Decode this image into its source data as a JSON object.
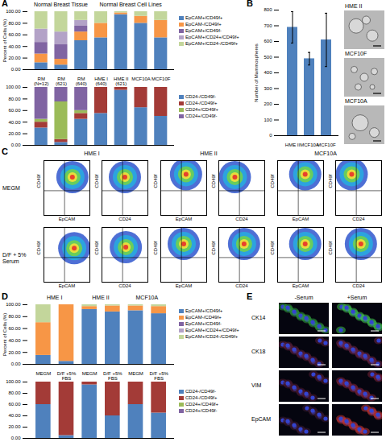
{
  "panel_labels": [
    "A",
    "B",
    "C",
    "D",
    "E"
  ],
  "chart_data": [
    {
      "type": "bar",
      "stacked": true,
      "categories": [
        "RM (N=12)",
        "RM (621)",
        "RM (640)",
        "HME I (640)",
        "HME II (621)",
        "MCF10A",
        "MCF10F"
      ],
      "groups": [
        "Normal Breast Tissue",
        "Normal Breast Tissue",
        "Normal Breast Tissue",
        "Normal Breast Cell Lines",
        "Normal Breast Cell Lines",
        "Normal Breast Cell Lines",
        "Normal Breast Cell Lines"
      ],
      "ylabel": "Percent of Cells (%)",
      "ylim": [
        0,
        100
      ],
      "yticks": [
        {
          "value": 0,
          "label": "0.00"
        },
        {
          "value": 20,
          "label": "20.00"
        },
        {
          "value": 40,
          "label": "40.00"
        },
        {
          "value": 60,
          "label": "60.00"
        },
        {
          "value": 80,
          "label": "80.00"
        },
        {
          "value": 100,
          "label": "100.00"
        }
      ],
      "series": [
        {
          "name": "EpCAM+/CD49f+",
          "color": "#4f81bd",
          "values": [
            12,
            8,
            50,
            55,
            95,
            80,
            55
          ]
        },
        {
          "name": "EpCAM-/CD49f+",
          "color": "#f79646",
          "values": [
            15,
            10,
            15,
            25,
            3,
            12,
            30
          ]
        },
        {
          "name": "EpCAM+/CD49f-",
          "color": "#8064a2",
          "values": [
            20,
            25,
            10,
            0,
            0,
            0,
            0
          ]
        },
        {
          "name": "EpCAM+/CD24+/CD49f+",
          "color": "#b3a2c7",
          "values": [
            23,
            22,
            10,
            0,
            0,
            0,
            0
          ]
        },
        {
          "name": "EpCAM+/CD24-/CD49f+",
          "color": "#c3d69b",
          "values": [
            30,
            35,
            15,
            20,
            2,
            8,
            15
          ]
        }
      ]
    },
    {
      "type": "bar",
      "stacked": true,
      "categories": [
        null,
        null,
        null,
        null,
        null,
        null,
        null
      ],
      "ylim": [
        0,
        100
      ],
      "yticks": [
        {
          "value": 0,
          "label": "0.00"
        },
        {
          "value": 20,
          "label": "20.00"
        },
        {
          "value": 40,
          "label": "40.00"
        },
        {
          "value": 60,
          "label": "60.00"
        },
        {
          "value": 80,
          "label": "80.00"
        },
        {
          "value": 100,
          "label": "100.00"
        }
      ],
      "series": [
        {
          "name": "CD24-/CD49f-",
          "color": "#4f81bd",
          "values": [
            30,
            5,
            45,
            55,
            95,
            65,
            50
          ]
        },
        {
          "name": "CD24-/CD49f+",
          "color": "#a33b37",
          "values": [
            10,
            5,
            10,
            45,
            5,
            35,
            50
          ]
        },
        {
          "name": "CD24+/CD49f+",
          "color": "#9bbb59",
          "values": [
            5,
            65,
            5,
            0,
            0,
            0,
            0
          ]
        },
        {
          "name": "CD24+/CD49f-",
          "color": "#8064a2",
          "values": [
            55,
            25,
            40,
            0,
            0,
            0,
            0
          ]
        }
      ]
    },
    {
      "type": "bar",
      "categories": [
        "HME II",
        "MCF10A",
        "MCF10F"
      ],
      "values": [
        690,
        490,
        610
      ],
      "errors": [
        100,
        40,
        170
      ],
      "color": "#4f81bd",
      "ylabel": "Number of Mammospheres",
      "ylim": [
        0,
        800
      ],
      "yticks": [
        0,
        100,
        200,
        300,
        400,
        500,
        600,
        700,
        800
      ]
    },
    {
      "type": "bar",
      "stacked": true,
      "categories": [
        "MEGM",
        "D/F +5% FBS",
        "MEGM",
        "D/F +5% FBS",
        "MEGM",
        "D/F +5% FBS"
      ],
      "groups": [
        "HME I",
        "HME I",
        "HME II",
        "HME II",
        "MCF10A",
        "MCF10A"
      ],
      "ylabel": "Percent of Cells (%)",
      "ylim": [
        0,
        100
      ],
      "yticks": [
        {
          "value": 0,
          "label": "0.00"
        },
        {
          "value": 20,
          "label": "20.00"
        },
        {
          "value": 40,
          "label": "40.00"
        },
        {
          "value": 60,
          "label": "60.00"
        },
        {
          "value": 80,
          "label": "80.00"
        },
        {
          "value": 100,
          "label": "100.00"
        }
      ],
      "series": [
        {
          "name": "EpCAM+/CD49f+",
          "color": "#4f81bd",
          "values": [
            15,
            5,
            92,
            88,
            90,
            85
          ]
        },
        {
          "name": "EpCAM-/CD49f+",
          "color": "#f79646",
          "values": [
            55,
            95,
            5,
            10,
            8,
            12
          ]
        },
        {
          "name": "EpCAM+/CD49f-",
          "color": "#8064a2",
          "values": [
            0,
            0,
            0,
            0,
            0,
            0
          ]
        },
        {
          "name": "EpCAM+/CD24+/CD49f+",
          "color": "#b3a2c7",
          "values": [
            0,
            0,
            0,
            0,
            0,
            0
          ]
        },
        {
          "name": "EpCAM+/CD24-/CD49f+",
          "color": "#c3d69b",
          "values": [
            30,
            0,
            3,
            2,
            2,
            3
          ]
        }
      ]
    },
    {
      "type": "bar",
      "stacked": true,
      "categories": [
        null,
        null,
        null,
        null,
        null,
        null
      ],
      "ylim": [
        0,
        100
      ],
      "yticks": [
        {
          "value": 0,
          "label": "0.00"
        },
        {
          "value": 20,
          "label": "20.00"
        },
        {
          "value": 40,
          "label": "40.00"
        },
        {
          "value": 60,
          "label": "60.00"
        },
        {
          "value": 80,
          "label": "80.00"
        },
        {
          "value": 100,
          "label": "100.00"
        }
      ],
      "series": [
        {
          "name": "CD24-/CD49f-",
          "color": "#4f81bd",
          "values": [
            60,
            5,
            95,
            40,
            60,
            45
          ]
        },
        {
          "name": "CD24-/CD49f+",
          "color": "#a33b37",
          "values": [
            40,
            95,
            5,
            60,
            40,
            55
          ]
        },
        {
          "name": "CD24+/CD49f+",
          "color": "#9bbb59",
          "values": [
            0,
            0,
            0,
            0,
            0,
            0
          ]
        },
        {
          "name": "CD24+/CD49f-",
          "color": "#8064a2",
          "values": [
            0,
            0,
            0,
            0,
            0,
            0
          ]
        }
      ]
    }
  ],
  "group_headers_A": true,
  "mammosphere_images": [
    "HME II",
    "MCF10F",
    "MCF10A"
  ],
  "flow_cytometry": {
    "row_labels": [
      "MEGM",
      "D/F + 5% Serum"
    ],
    "xlim": [
      0,
      1
    ],
    "ylim": [
      0,
      1
    ],
    "gate": [
      0.45,
      0.45
    ],
    "groups": [
      {
        "name": "HME I",
        "plots": [
          {
            "x_label": "EpCAM",
            "y_label": "CD49f",
            "centers": [
              [
                0.62,
                0.7
              ],
              [
                0.66,
                0.62
              ]
            ]
          },
          {
            "x_label": "CD24",
            "y_label": "CD49f",
            "centers": [
              [
                0.5,
                0.7
              ],
              [
                0.52,
                0.64
              ]
            ]
          }
        ]
      },
      {
        "name": "HME II",
        "plots": [
          {
            "x_label": "EpCAM",
            "y_label": "CD49f",
            "centers": [
              [
                0.55,
                0.75
              ],
              [
                0.5,
                0.7
              ]
            ]
          },
          {
            "x_label": "CD24",
            "y_label": "CD49f",
            "centers": [
              [
                0.35,
                0.7
              ],
              [
                0.55,
                0.7
              ]
            ]
          }
        ]
      },
      {
        "name": "MCF10A",
        "plots": [
          {
            "x_label": "EpCAM",
            "y_label": "CD49f",
            "centers": [
              [
                0.6,
                0.75
              ],
              [
                0.6,
                0.7
              ]
            ]
          },
          {
            "x_label": "CD24",
            "y_label": "CD49f",
            "centers": [
              [
                0.35,
                0.75
              ],
              [
                0.55,
                0.7
              ]
            ]
          }
        ]
      }
    ]
  },
  "immunofluorescence": {
    "columns": [
      "-Serum",
      "+Serum"
    ],
    "rows": [
      "CK14",
      "CK18",
      "VIM",
      "EpCAM"
    ]
  }
}
